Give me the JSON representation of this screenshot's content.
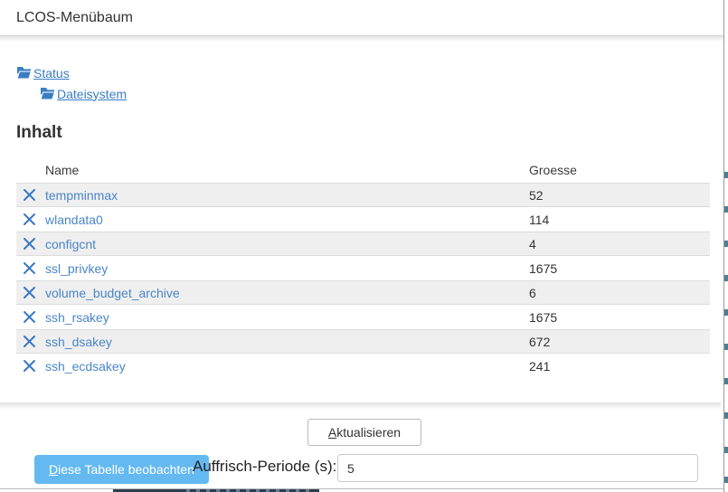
{
  "window": {
    "title": "LCOS-Menübaum"
  },
  "tree": {
    "items": [
      {
        "label": "Status"
      },
      {
        "label": "Dateisystem"
      }
    ]
  },
  "content": {
    "heading": "Inhalt",
    "table": {
      "columns": {
        "name": "Name",
        "size": "Groesse"
      },
      "rows": [
        {
          "name": "tempminmax",
          "size": "52"
        },
        {
          "name": "wlandata0",
          "size": "114"
        },
        {
          "name": "configcnt",
          "size": "4"
        },
        {
          "name": "ssl_privkey",
          "size": "1675"
        },
        {
          "name": "volume_budget_archive",
          "size": "6"
        },
        {
          "name": "ssh_rsakey",
          "size": "1675"
        },
        {
          "name": "ssh_dsakey",
          "size": "672"
        },
        {
          "name": "ssh_ecdsakey",
          "size": "241"
        }
      ]
    }
  },
  "footer": {
    "refresh_button_label": "Aktualisieren",
    "watch_button_label": "Diese Tabelle beobachten",
    "period_label": "Auffrisch-Periode (s):",
    "period_value": "5"
  },
  "colors": {
    "link_blue": "#3b7dc4",
    "table_link_blue": "#4a86c8",
    "delete_icon_blue": "#3a78c3",
    "row_alt_bg": "#efefef",
    "watch_button_bg": "#64b9f0"
  }
}
